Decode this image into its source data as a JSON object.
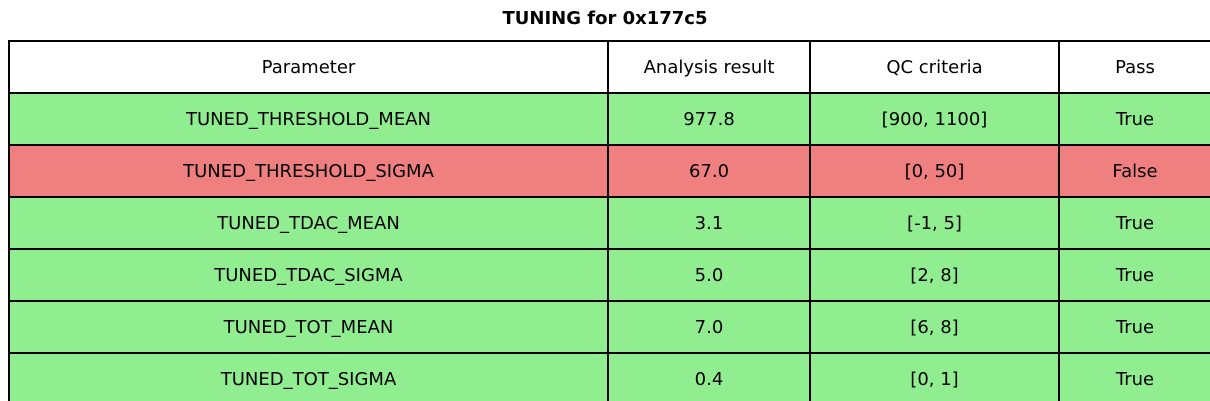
{
  "title": "TUNING for 0x177c5",
  "colors": {
    "pass_row": "#90EE90",
    "fail_row": "#F08080",
    "header_bg": "#FFFFFF",
    "border": "#000000",
    "text": "#000000"
  },
  "chart_data": {
    "type": "table",
    "title": "TUNING for 0x177c5",
    "columns": [
      "Parameter",
      "Analysis result",
      "QC criteria",
      "Pass"
    ],
    "rows": [
      {
        "parameter": "TUNED_THRESHOLD_MEAN",
        "analysis_result": "977.8",
        "qc_criteria": "[900, 1100]",
        "pass": "True"
      },
      {
        "parameter": "TUNED_THRESHOLD_SIGMA",
        "analysis_result": "67.0",
        "qc_criteria": "[0, 50]",
        "pass": "False"
      },
      {
        "parameter": "TUNED_TDAC_MEAN",
        "analysis_result": "3.1",
        "qc_criteria": "[-1, 5]",
        "pass": "True"
      },
      {
        "parameter": "TUNED_TDAC_SIGMA",
        "analysis_result": "5.0",
        "qc_criteria": "[2, 8]",
        "pass": "True"
      },
      {
        "parameter": "TUNED_TOT_MEAN",
        "analysis_result": "7.0",
        "qc_criteria": "[6, 8]",
        "pass": "True"
      },
      {
        "parameter": "TUNED_TOT_SIGMA",
        "analysis_result": "0.4",
        "qc_criteria": "[0, 1]",
        "pass": "True"
      }
    ],
    "layout": {
      "header_background": "#FFFFFF",
      "pass_row_background": "#90EE90",
      "fail_row_background": "#F08080",
      "grid": "on",
      "text_align": "center"
    }
  }
}
